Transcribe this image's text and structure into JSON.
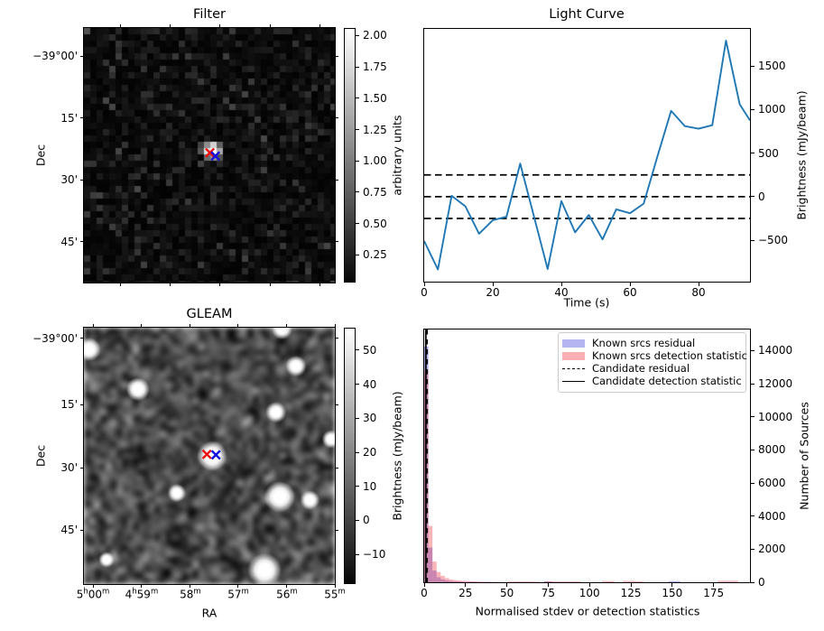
{
  "chart_data": [
    {
      "panel": "filter-cutout",
      "type": "heatmap",
      "title": "Filter",
      "xlabel": "",
      "ylabel": "Dec",
      "ytick_labels": [
        "−39°00'",
        "15'",
        "30'",
        "45'"
      ],
      "xtick_labels": [
        "",
        "",
        "",
        "",
        ""
      ],
      "colorbar": {
        "label": "arbitrary units",
        "ticks": [
          2.0,
          1.75,
          1.5,
          1.25,
          1.0,
          0.75,
          0.5,
          0.25
        ],
        "tick_labels": [
          "2.00",
          "1.75",
          "1.50",
          "1.25",
          "1.00",
          "0.75",
          "0.50",
          "0.25"
        ],
        "value_range": [
          0.03,
          2.06
        ],
        "cmap": "gray"
      },
      "image_description": "pixelated dark grayscale noise map with one bright compact source at the centre",
      "markers": [
        {
          "name": "red-x-marker",
          "symbol": "x",
          "color": "#ee1111",
          "frac": [
            0.502,
            0.49
          ]
        },
        {
          "name": "blue-x-marker",
          "symbol": "x",
          "color": "#1111dd",
          "frac": [
            0.524,
            0.503
          ]
        }
      ]
    },
    {
      "panel": "light-curve",
      "type": "line",
      "title": "Light Curve",
      "xlabel": "Time (s)",
      "ylabel": "Brightness (mJy/beam)",
      "line_color": "#1f77b4",
      "x": [
        0,
        4,
        8,
        12,
        16,
        20,
        24,
        28,
        32,
        36,
        40,
        44,
        48,
        52,
        56,
        60,
        64,
        68,
        72,
        76,
        80,
        84,
        88,
        92,
        95
      ],
      "y": [
        -510,
        -835,
        10,
        -110,
        -425,
        -270,
        -230,
        380,
        -225,
        -830,
        -50,
        -410,
        -210,
        -490,
        -145,
        -190,
        -80,
        460,
        985,
        810,
        780,
        820,
        1790,
        1060,
        875
      ],
      "xlim": [
        0,
        95
      ],
      "ylim": [
        -975,
        1925
      ],
      "xticks": [
        0,
        20,
        40,
        60,
        80
      ],
      "yticks": [
        -500,
        0,
        500,
        1000,
        1500
      ],
      "ytick_labels": [
        "−500",
        "0",
        "500",
        "1000",
        "1500"
      ],
      "threshold_lines": {
        "style": "dashed",
        "color": "#000000",
        "values": [
          250,
          0,
          -250
        ]
      }
    },
    {
      "panel": "gleam-cutout",
      "type": "heatmap",
      "title": "GLEAM",
      "xlabel": "RA",
      "ylabel": "Dec",
      "xtick_labels": [
        "5h00m",
        "4h59m",
        "58m",
        "57m",
        "56m",
        "55m"
      ],
      "ytick_labels": [
        "−39°00'",
        "15'",
        "30'",
        "45'"
      ],
      "colorbar": {
        "label": "Brightness (mJy/beam)",
        "ticks": [
          50,
          40,
          30,
          20,
          10,
          0,
          -10
        ],
        "tick_labels": [
          "50",
          "40",
          "30",
          "20",
          "10",
          "0",
          "−10"
        ],
        "value_range": [
          -18.7,
          56.6
        ],
        "cmap": "gray"
      },
      "image_description": "smoothed grayscale radio image with several bright unresolved sources; candidate source at centre",
      "sources_frac": [
        [
          0.02,
          0.085,
          9
        ],
        [
          0.79,
          0.005,
          8
        ],
        [
          0.845,
          0.15,
          8
        ],
        [
          0.215,
          0.24,
          9
        ],
        [
          0.765,
          0.33,
          8
        ],
        [
          0.985,
          0.435,
          7
        ],
        [
          0.511,
          0.5,
          11.5
        ],
        [
          0.37,
          0.645,
          7
        ],
        [
          0.78,
          0.66,
          12
        ],
        [
          0.9,
          0.672,
          7.5
        ],
        [
          0.72,
          0.945,
          13
        ],
        [
          0.09,
          0.905,
          6
        ]
      ],
      "markers": [
        {
          "name": "red-x-marker",
          "symbol": "x",
          "color": "#ee1111",
          "frac": [
            0.49,
            0.494
          ]
        },
        {
          "name": "blue-x-marker",
          "symbol": "x",
          "color": "#1111dd",
          "frac": [
            0.526,
            0.496
          ]
        }
      ]
    },
    {
      "panel": "statistics-histogram",
      "type": "bar",
      "title": "",
      "xlabel": "Normalised stdev or detection statistics",
      "ylabel": "Number of Sources",
      "xlim": [
        0,
        197
      ],
      "ylim": [
        0,
        15280
      ],
      "xticks": [
        0,
        25,
        50,
        75,
        100,
        125,
        150,
        175
      ],
      "yticks": [
        0,
        2000,
        4000,
        6000,
        8000,
        10000,
        12000,
        14000
      ],
      "series": [
        {
          "name": "Known srcs residual",
          "fill": "rgba(80,80,225,0.45)",
          "legend_color": "#b5b5f1",
          "bins": [
            [
              0,
              2.5,
              14250
            ],
            [
              2.5,
              5,
              2100
            ],
            [
              5,
              7.5,
              700
            ],
            [
              7.5,
              10,
              300
            ],
            [
              10,
              12.5,
              170
            ],
            [
              12.5,
              15,
              110
            ],
            [
              15,
              17.5,
              75
            ],
            [
              17.5,
              20,
              55
            ],
            [
              20,
              22.5,
              40
            ],
            [
              22.5,
              25,
              30
            ],
            [
              25,
              30,
              22
            ],
            [
              30,
              35,
              15
            ],
            [
              35,
              45,
              10
            ],
            [
              72.5,
              77.5,
              55
            ],
            [
              147.5,
              155,
              65
            ]
          ]
        },
        {
          "name": "Known srcs detection statistic",
          "fill": "rgba(242,60,70,0.38)",
          "legend_color": "#f8b0b5",
          "bins": [
            [
              0,
              2.5,
              12800
            ],
            [
              2.5,
              5,
              3400
            ],
            [
              5,
              7.5,
              1250
            ],
            [
              7.5,
              10,
              620
            ],
            [
              10,
              12.5,
              390
            ],
            [
              12.5,
              15,
              250
            ],
            [
              15,
              17.5,
              170
            ],
            [
              17.5,
              20,
              130
            ],
            [
              20,
              22.5,
              105
            ],
            [
              22.5,
              25,
              85
            ],
            [
              25,
              27.5,
              70
            ],
            [
              27.5,
              30,
              60
            ],
            [
              30,
              32.5,
              50
            ],
            [
              32.5,
              35,
              40
            ],
            [
              35,
              40,
              30
            ],
            [
              40,
              45,
              20
            ],
            [
              50,
              55,
              45
            ],
            [
              55,
              60,
              55
            ],
            [
              60,
              65,
              50
            ],
            [
              65,
              70,
              40
            ],
            [
              72.5,
              80,
              55
            ],
            [
              80,
              87.5,
              50
            ],
            [
              87.5,
              95,
              55
            ],
            [
              107.5,
              115,
              70
            ],
            [
              120,
              127.5,
              75
            ],
            [
              127.5,
              132.5,
              60
            ],
            [
              177.5,
              190,
              85
            ]
          ]
        }
      ],
      "candidate_lines": [
        {
          "name": "Candidate residual",
          "style": "dashed",
          "color": "#000000",
          "x": 1.75
        },
        {
          "name": "Candidate detection statistic",
          "style": "solid",
          "color": "#000000",
          "x": 1.0
        }
      ],
      "legend_order": [
        "Known srcs residual",
        "Known srcs detection statistic",
        "Candidate residual",
        "Candidate detection statistic"
      ]
    }
  ]
}
